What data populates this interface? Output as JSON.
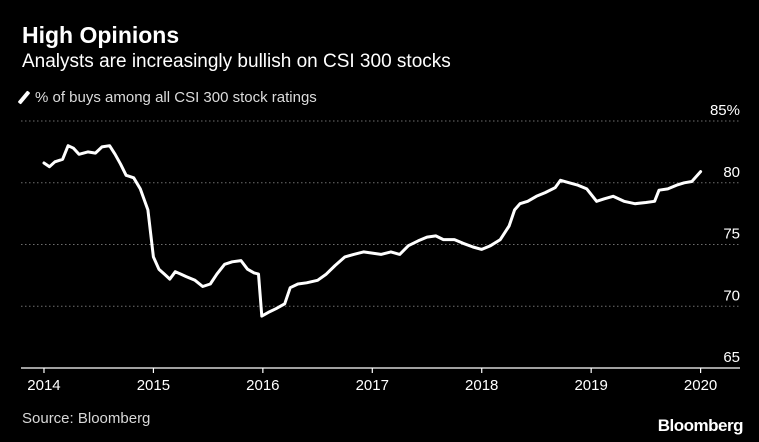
{
  "chart_data": {
    "type": "line",
    "title": "High Opinions",
    "subtitle": "Analysts are increasingly bullish on CSI 300 stocks",
    "series": [
      {
        "name": "% of buys among all CSI 300 stock ratings",
        "color": "#ffffff",
        "points": [
          [
            2014.0,
            81.6
          ],
          [
            2014.05,
            81.3
          ],
          [
            2014.1,
            81.7
          ],
          [
            2014.17,
            81.9
          ],
          [
            2014.22,
            83.0
          ],
          [
            2014.27,
            82.8
          ],
          [
            2014.32,
            82.3
          ],
          [
            2014.4,
            82.5
          ],
          [
            2014.47,
            82.4
          ],
          [
            2014.53,
            82.9
          ],
          [
            2014.6,
            83.0
          ],
          [
            2014.65,
            82.3
          ],
          [
            2014.7,
            81.5
          ],
          [
            2014.75,
            80.6
          ],
          [
            2014.82,
            80.4
          ],
          [
            2014.88,
            79.5
          ],
          [
            2014.95,
            77.8
          ],
          [
            2015.0,
            74.0
          ],
          [
            2015.05,
            73.0
          ],
          [
            2015.1,
            72.6
          ],
          [
            2015.15,
            72.2
          ],
          [
            2015.2,
            72.8
          ],
          [
            2015.25,
            72.6
          ],
          [
            2015.3,
            72.4
          ],
          [
            2015.38,
            72.1
          ],
          [
            2015.45,
            71.6
          ],
          [
            2015.52,
            71.8
          ],
          [
            2015.58,
            72.6
          ],
          [
            2015.65,
            73.4
          ],
          [
            2015.72,
            73.6
          ],
          [
            2015.8,
            73.7
          ],
          [
            2015.86,
            73.0
          ],
          [
            2015.92,
            72.7
          ],
          [
            2015.96,
            72.6
          ],
          [
            2015.99,
            69.2
          ],
          [
            2016.05,
            69.5
          ],
          [
            2016.12,
            69.8
          ],
          [
            2016.2,
            70.2
          ],
          [
            2016.25,
            71.5
          ],
          [
            2016.32,
            71.8
          ],
          [
            2016.4,
            71.9
          ],
          [
            2016.5,
            72.1
          ],
          [
            2016.58,
            72.6
          ],
          [
            2016.66,
            73.3
          ],
          [
            2016.75,
            74.0
          ],
          [
            2016.83,
            74.2
          ],
          [
            2016.92,
            74.4
          ],
          [
            2017.0,
            74.3
          ],
          [
            2017.08,
            74.2
          ],
          [
            2017.17,
            74.4
          ],
          [
            2017.25,
            74.2
          ],
          [
            2017.33,
            74.9
          ],
          [
            2017.42,
            75.3
          ],
          [
            2017.5,
            75.6
          ],
          [
            2017.58,
            75.7
          ],
          [
            2017.65,
            75.4
          ],
          [
            2017.75,
            75.4
          ],
          [
            2017.83,
            75.1
          ],
          [
            2017.92,
            74.8
          ],
          [
            2018.0,
            74.6
          ],
          [
            2018.08,
            74.9
          ],
          [
            2018.17,
            75.4
          ],
          [
            2018.25,
            76.5
          ],
          [
            2018.3,
            77.8
          ],
          [
            2018.35,
            78.3
          ],
          [
            2018.42,
            78.5
          ],
          [
            2018.5,
            78.9
          ],
          [
            2018.58,
            79.2
          ],
          [
            2018.67,
            79.6
          ],
          [
            2018.72,
            80.2
          ],
          [
            2018.8,
            80.0
          ],
          [
            2018.88,
            79.8
          ],
          [
            2018.96,
            79.5
          ],
          [
            2019.05,
            78.5
          ],
          [
            2019.12,
            78.7
          ],
          [
            2019.2,
            78.9
          ],
          [
            2019.3,
            78.5
          ],
          [
            2019.4,
            78.3
          ],
          [
            2019.5,
            78.4
          ],
          [
            2019.58,
            78.5
          ],
          [
            2019.62,
            79.4
          ],
          [
            2019.7,
            79.5
          ],
          [
            2019.78,
            79.8
          ],
          [
            2019.85,
            80.0
          ],
          [
            2019.92,
            80.1
          ],
          [
            2020.0,
            80.9
          ]
        ]
      }
    ],
    "x_ticks": [
      "2014",
      "2015",
      "2016",
      "2017",
      "2018",
      "2019",
      "2020"
    ],
    "y_ticks": [
      "65",
      "70",
      "75",
      "80",
      "85%"
    ],
    "xlim": [
      2013.79,
      2020.36
    ],
    "ylim": [
      65,
      85
    ],
    "legend": "% of buys among all CSI 300 stock ratings",
    "grid": "horizontal dotted",
    "axis_color": "#ffffff",
    "grid_color": "#6e6e6e",
    "source": "Source: Bloomberg",
    "brand": "Bloomberg"
  }
}
